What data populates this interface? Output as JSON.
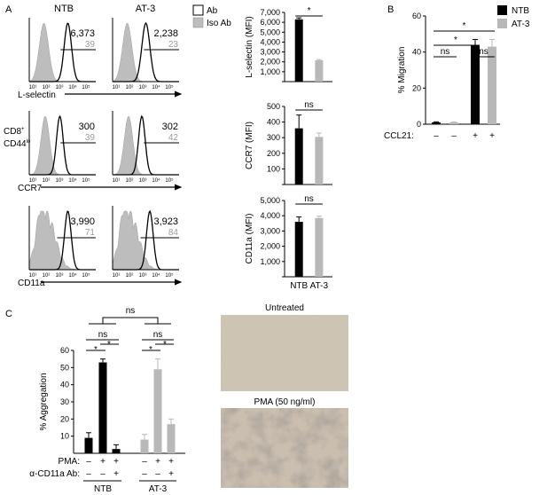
{
  "panels": {
    "a": "A",
    "b": "B",
    "c": "C"
  },
  "flow": {
    "col_ntb": "NTB",
    "col_at3": "AT-3",
    "legend_ab": "Ab",
    "legend_iso": "Iso Ab",
    "row_label_line1": "CD8",
    "row_label_sup1": "+",
    "row_label_line2": "CD44",
    "row_label_sup2": "lo",
    "xticks": [
      "10¹",
      "10²",
      "10³",
      "10⁴",
      "10⁵"
    ],
    "rows": [
      {
        "marker": "L-selectin",
        "ntb_ab": "6,373",
        "ntb_iso": "39",
        "at3_ab": "2,238",
        "at3_iso": "23"
      },
      {
        "marker": "CCR7",
        "ntb_ab": "300",
        "ntb_iso": "39",
        "at3_ab": "302",
        "at3_iso": "42"
      },
      {
        "marker": "CD11a",
        "ntb_ab": "3,990",
        "ntb_iso": "71",
        "at3_ab": "3,923",
        "at3_iso": "84"
      }
    ]
  },
  "colors": {
    "ntb": "#000000",
    "at3": "#b8b8b8",
    "iso_fill": "#bdbdbd"
  },
  "chart_data": [
    {
      "type": "bar",
      "panel": "A",
      "categories": [
        "NTB",
        "AT-3"
      ],
      "values": [
        6300,
        2150
      ],
      "errors": [
        150,
        80
      ],
      "ylabel": "L-selectin (MFI)",
      "ylim": [
        0,
        7000
      ],
      "yticks": [
        "",
        "1,000",
        "2,000",
        "3,000",
        "4,000",
        "5,000",
        "6,000",
        "7,000"
      ],
      "significance": [
        {
          "between": [
            0,
            1
          ],
          "label": "*"
        }
      ]
    },
    {
      "type": "bar",
      "panel": "A",
      "categories": [
        "NTB",
        "AT-3"
      ],
      "values": [
        360,
        305
      ],
      "errors": [
        85,
        25
      ],
      "ylabel": "CCR7 (MFI)",
      "ylim": [
        0,
        500
      ],
      "yticks": [
        "",
        "100",
        "200",
        "300",
        "400",
        "500"
      ],
      "significance": [
        {
          "between": [
            0,
            1
          ],
          "label": "ns"
        }
      ]
    },
    {
      "type": "bar",
      "panel": "A",
      "categories": [
        "NTB",
        "AT-3"
      ],
      "values": [
        3600,
        3850
      ],
      "errors": [
        320,
        120
      ],
      "ylabel": "CD11a (MFI)",
      "ylim": [
        0,
        5000
      ],
      "yticks": [
        "",
        "1,000",
        "2,000",
        "3,000",
        "4,000",
        "5,000"
      ],
      "significance": [
        {
          "between": [
            0,
            1
          ],
          "label": "ns"
        }
      ],
      "xlabels": [
        "NTB",
        "AT-3"
      ]
    },
    {
      "type": "bar",
      "panel": "B",
      "series": [
        {
          "name": "NTB",
          "values": [
            1,
            44
          ]
        },
        {
          "name": "AT-3",
          "values": [
            1,
            43
          ]
        }
      ],
      "errors": {
        "NTB": [
          0.3,
          3
        ],
        "AT-3": [
          0.3,
          4
        ]
      },
      "ylabel": "% Migration",
      "ylim": [
        0,
        60
      ],
      "yticks": [
        "0",
        "20",
        "40",
        "60"
      ],
      "treatment_label": "CCL21:",
      "treatment_marks": [
        "–",
        "–",
        "+",
        "+"
      ],
      "significance": [
        "ns",
        "*",
        "ns",
        "*"
      ]
    },
    {
      "type": "bar",
      "panel": "C",
      "values": [
        9,
        53,
        2.5,
        8,
        49,
        17
      ],
      "errors": [
        3,
        2,
        2.5,
        3,
        6,
        3
      ],
      "ylabel": "% Aggregation",
      "ylim": [
        0,
        60
      ],
      "yticks": [
        "10",
        "20",
        "30",
        "40",
        "50",
        "60"
      ],
      "row1_label": "PMA:",
      "row1_marks": [
        "–",
        "+",
        "+",
        "–",
        "+",
        "+"
      ],
      "row2_label": "α-CD11a Ab:",
      "row2_marks": [
        "–",
        "–",
        "+",
        "–",
        "–",
        "+"
      ],
      "groups": [
        "NTB",
        "AT-3"
      ],
      "significance": [
        "ns",
        "ns",
        "*",
        "*",
        "ns",
        "*",
        "*"
      ]
    }
  ],
  "micrographs": {
    "top_title": "Untreated",
    "bottom_title": "PMA (50 ng/ml)"
  }
}
